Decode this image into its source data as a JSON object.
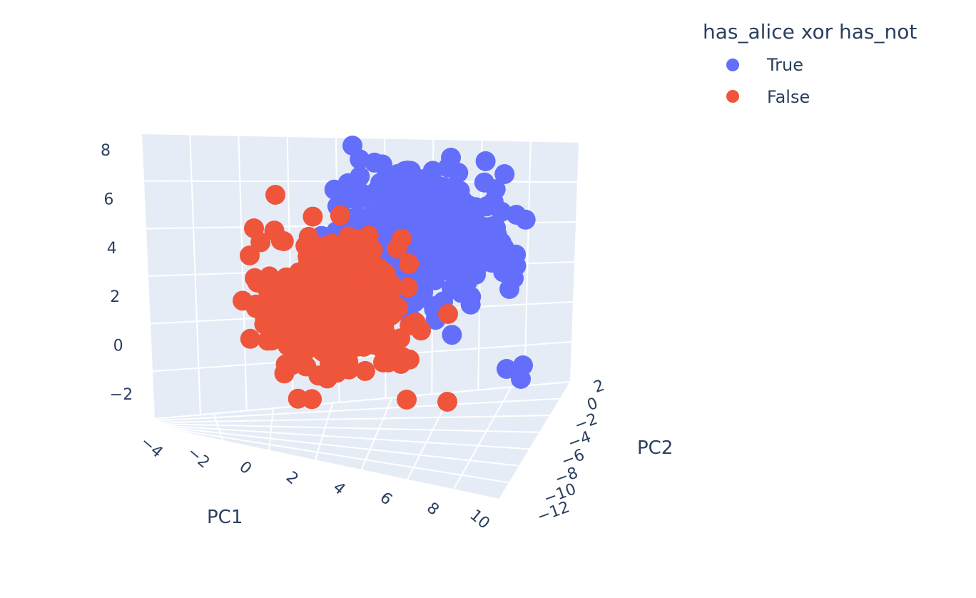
{
  "chart_data": {
    "type": "scatter",
    "dimensions": 3,
    "legend": {
      "title": "has_alice xor has_not",
      "placement": "top-right",
      "entries": [
        "True",
        "False"
      ]
    },
    "axes": {
      "x": {
        "title": "PC1",
        "ticks": [
          "−4",
          "−2",
          "0",
          "2",
          "4",
          "6",
          "8",
          "10"
        ],
        "range": [
          -4,
          10
        ]
      },
      "y": {
        "title": "PC2",
        "ticks": [
          "2",
          "0",
          "−2",
          "−4",
          "−6",
          "−8",
          "−10",
          "−12"
        ],
        "range": [
          -12,
          2
        ]
      },
      "z": {
        "title": "",
        "ticks": [
          "8",
          "6",
          "4",
          "2",
          "0",
          "−2"
        ],
        "range": [
          -2,
          8
        ]
      }
    },
    "grid": true,
    "series": [
      {
        "name": "True",
        "color": "#636efa",
        "cluster": {
          "pc1_range": [
            1,
            10
          ],
          "pc2_range": [
            -6,
            2
          ],
          "pc3_range": [
            0,
            8
          ]
        }
      },
      {
        "name": "False",
        "color": "#ef553b",
        "cluster": {
          "pc1_range": [
            -4,
            6
          ],
          "pc2_range": [
            -12,
            -2
          ],
          "pc3_range": [
            -2,
            6
          ]
        }
      }
    ]
  }
}
